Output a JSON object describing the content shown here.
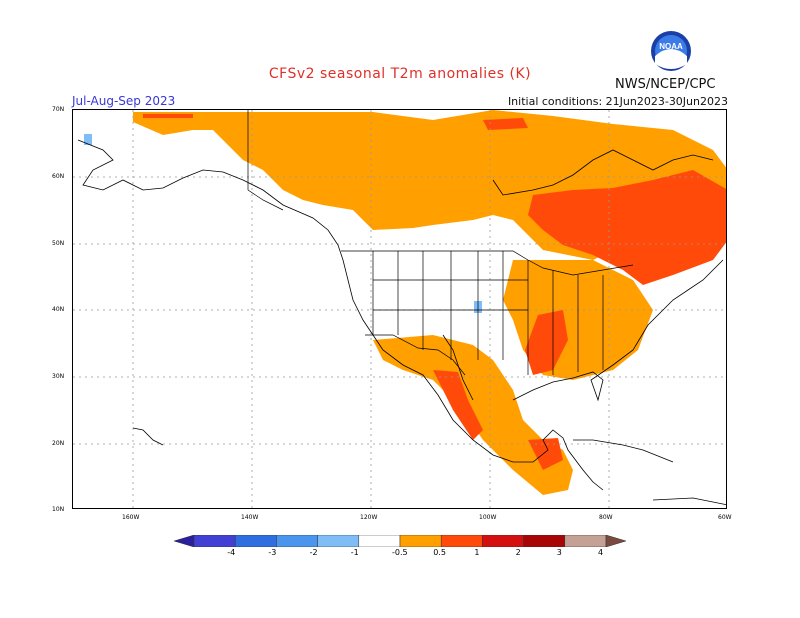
{
  "header": {
    "title": "CFSv2 seasonal T2m anomalies (K)",
    "period": "Jul-Aug-Sep 2023",
    "initial_conditions": "Initial conditions: 21Jun2023-30Jun2023",
    "agency": "NWS/NCEP/CPC",
    "logo_text": "NOAA"
  },
  "axes": {
    "lat_labels": [
      "70N",
      "60N",
      "50N",
      "40N",
      "30N",
      "20N",
      "10N"
    ],
    "lon_labels": [
      "160W",
      "140W",
      "120W",
      "100W",
      "80W",
      "60W"
    ]
  },
  "colorbar": {
    "labels": [
      "-4",
      "-3",
      "-2",
      "-1",
      "-0.5",
      "0.5",
      "1",
      "2",
      "3",
      "4"
    ],
    "colors": [
      "#2a1f9e",
      "#4240d4",
      "#2f6ee0",
      "#4a96ef",
      "#80bdf7",
      "#ffffff",
      "#ff9f00",
      "#ff4a0a",
      "#d40f0f",
      "#a80606",
      "#c4a095",
      "#7a4a40"
    ]
  },
  "colors": {
    "land_outline": "#000000",
    "grid": "#999999",
    "title": "#e0302a",
    "period": "#3838d8"
  }
}
